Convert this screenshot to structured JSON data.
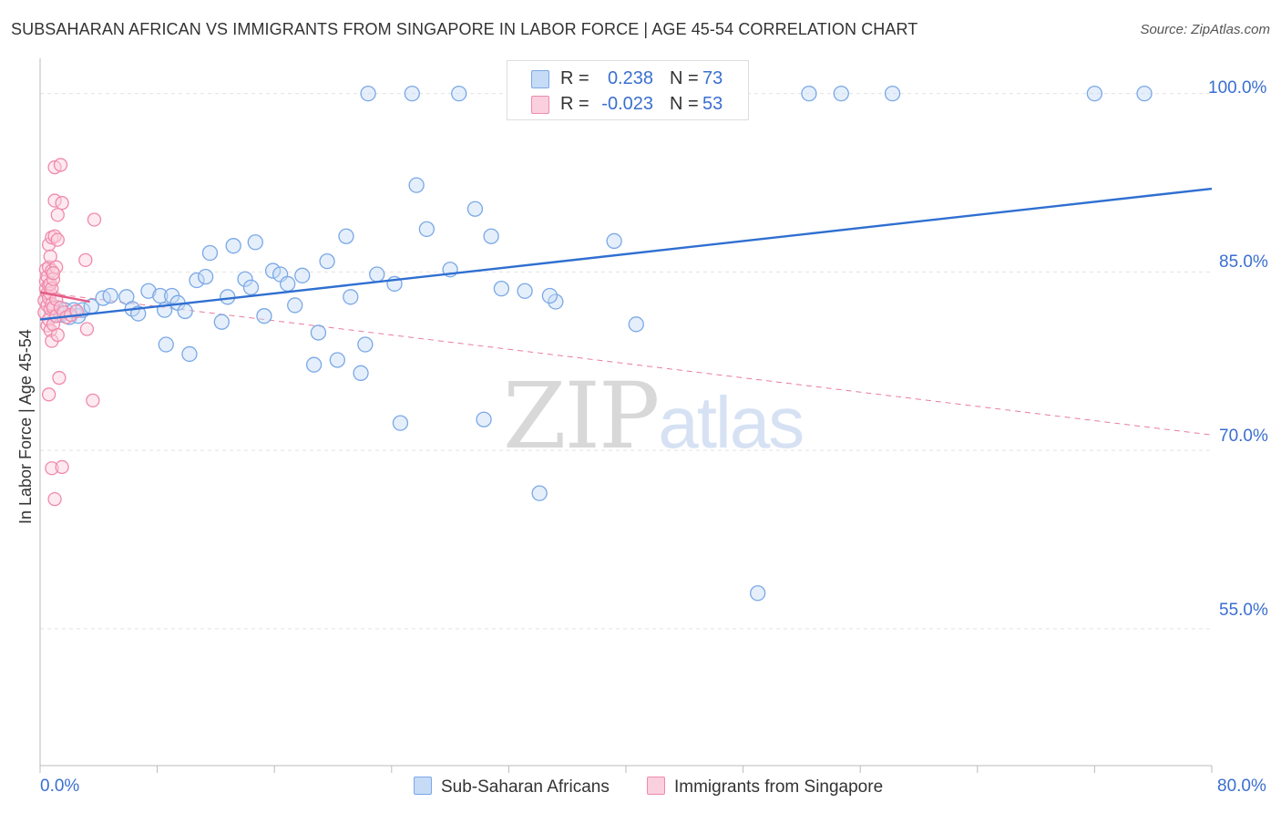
{
  "title": "SUBSAHARAN AFRICAN VS IMMIGRANTS FROM SINGAPORE IN LABOR FORCE | AGE 45-54 CORRELATION CHART",
  "source": "Source: ZipAtlas.com",
  "watermark": {
    "zip": "ZIP",
    "atlas": "atlas"
  },
  "legend": {
    "rows": [
      {
        "r_label": "R =",
        "r_value": "0.238",
        "n_label": "N =",
        "n_value": "73"
      },
      {
        "r_label": "R =",
        "r_value": "-0.023",
        "n_label": "N =",
        "n_value": "53"
      }
    ]
  },
  "colors": {
    "blue": "#7aa8e6",
    "blue_fill": "#c6dbf6",
    "blue_line": "#2f6fd1",
    "pink": "#f08aab",
    "pink_fill": "#fbd0de",
    "pink_line": "#e55b86",
    "axis_text": "#3a6fd0",
    "grid": "#e3e3e3"
  },
  "chart_data": {
    "type": "scatter",
    "title": "SUBSAHARAN AFRICAN VS IMMIGRANTS FROM SINGAPORE IN LABOR FORCE | AGE 45-54 CORRELATION CHART",
    "xlabel": "",
    "ylabel": "In Labor Force | Age 45-54",
    "xlim": [
      0,
      80
    ],
    "ylim": [
      43.5,
      102.5
    ],
    "x_tick_labels": [
      "0.0%",
      "80.0%"
    ],
    "y_ticks": [
      55,
      70,
      85,
      100
    ],
    "y_tick_labels": [
      "55.0%",
      "70.0%",
      "85.0%",
      "100.0%"
    ],
    "grid": true,
    "legend_position": "bottom",
    "series": [
      {
        "name": "Sub-Saharan Africans",
        "R": 0.238,
        "N": 73,
        "trend": {
          "x": [
            0,
            80
          ],
          "y": [
            81.0,
            92.0
          ]
        },
        "points": [
          [
            0.8,
            81.4
          ],
          [
            1.1,
            82.0
          ],
          [
            1.4,
            81.4
          ],
          [
            1.7,
            81.8
          ],
          [
            2.0,
            81.2
          ],
          [
            2.3,
            81.8
          ],
          [
            2.6,
            81.3
          ],
          [
            2.9,
            81.8
          ],
          [
            3.5,
            82.1
          ],
          [
            4.3,
            82.8
          ],
          [
            4.8,
            83.0
          ],
          [
            5.9,
            82.9
          ],
          [
            6.3,
            81.9
          ],
          [
            6.7,
            81.5
          ],
          [
            7.4,
            83.4
          ],
          [
            8.2,
            83.0
          ],
          [
            8.5,
            81.8
          ],
          [
            8.6,
            78.9
          ],
          [
            9.0,
            83.0
          ],
          [
            9.4,
            82.4
          ],
          [
            9.9,
            81.7
          ],
          [
            10.2,
            78.1
          ],
          [
            10.7,
            84.3
          ],
          [
            11.3,
            84.6
          ],
          [
            11.6,
            86.6
          ],
          [
            12.4,
            80.8
          ],
          [
            12.8,
            82.9
          ],
          [
            13.2,
            87.2
          ],
          [
            14.0,
            84.4
          ],
          [
            14.4,
            83.7
          ],
          [
            14.7,
            87.5
          ],
          [
            15.3,
            81.3
          ],
          [
            15.9,
            85.1
          ],
          [
            16.4,
            84.8
          ],
          [
            16.9,
            84.0
          ],
          [
            17.4,
            82.2
          ],
          [
            17.9,
            84.7
          ],
          [
            18.7,
            77.2
          ],
          [
            19.0,
            79.9
          ],
          [
            19.6,
            85.9
          ],
          [
            20.3,
            77.6
          ],
          [
            20.9,
            88.0
          ],
          [
            21.2,
            82.9
          ],
          [
            21.9,
            76.5
          ],
          [
            22.2,
            78.9
          ],
          [
            22.4,
            100.0
          ],
          [
            23.0,
            84.8
          ],
          [
            24.2,
            84.0
          ],
          [
            24.6,
            72.3
          ],
          [
            25.4,
            100.0
          ],
          [
            25.7,
            92.3
          ],
          [
            26.4,
            88.6
          ],
          [
            28.0,
            85.2
          ],
          [
            28.6,
            100.0
          ],
          [
            29.7,
            90.3
          ],
          [
            30.3,
            72.6
          ],
          [
            30.8,
            88.0
          ],
          [
            31.5,
            83.6
          ],
          [
            33.1,
            83.4
          ],
          [
            34.1,
            66.4
          ],
          [
            35.2,
            82.5
          ],
          [
            37.4,
            100.0
          ],
          [
            39.2,
            87.6
          ],
          [
            40.7,
            80.6
          ],
          [
            41.3,
            100.0
          ],
          [
            43.1,
            100.0
          ],
          [
            49.0,
            58.0
          ],
          [
            52.5,
            100.0
          ],
          [
            54.7,
            100.0
          ],
          [
            58.2,
            100.0
          ],
          [
            72.0,
            100.0
          ],
          [
            75.4,
            100.0
          ],
          [
            34.8,
            83.0
          ]
        ]
      },
      {
        "name": "Immigrants from Singapore",
        "R": -0.023,
        "N": 53,
        "trend": {
          "x": [
            0,
            3.4
          ],
          "y": [
            83.3,
            82.5
          ]
        },
        "trend_extended": {
          "x": [
            0,
            80
          ],
          "y": [
            83.3,
            71.3
          ]
        },
        "points": [
          [
            0.3,
            81.6
          ],
          [
            0.3,
            82.6
          ],
          [
            0.4,
            83.6
          ],
          [
            0.4,
            84.2
          ],
          [
            0.4,
            85.2
          ],
          [
            0.5,
            80.5
          ],
          [
            0.5,
            82.2
          ],
          [
            0.5,
            83.2
          ],
          [
            0.5,
            84.6
          ],
          [
            0.6,
            81.0
          ],
          [
            0.6,
            82.8
          ],
          [
            0.6,
            83.9
          ],
          [
            0.6,
            85.4
          ],
          [
            0.6,
            87.3
          ],
          [
            0.6,
            74.7
          ],
          [
            0.7,
            80.1
          ],
          [
            0.7,
            81.9
          ],
          [
            0.7,
            83.2
          ],
          [
            0.7,
            84.0
          ],
          [
            0.7,
            86.3
          ],
          [
            0.8,
            79.2
          ],
          [
            0.8,
            82.3
          ],
          [
            0.8,
            83.6
          ],
          [
            0.8,
            85.1
          ],
          [
            0.8,
            87.9
          ],
          [
            0.8,
            68.5
          ],
          [
            0.9,
            80.6
          ],
          [
            0.9,
            82.0
          ],
          [
            0.9,
            84.4
          ],
          [
            1.0,
            65.9
          ],
          [
            1.0,
            88.0
          ],
          [
            1.0,
            91.0
          ],
          [
            1.0,
            93.8
          ],
          [
            1.1,
            81.3
          ],
          [
            1.1,
            82.7
          ],
          [
            1.1,
            85.4
          ],
          [
            1.2,
            79.7
          ],
          [
            1.2,
            87.7
          ],
          [
            1.2,
            89.8
          ],
          [
            1.3,
            76.1
          ],
          [
            1.4,
            94.0
          ],
          [
            1.4,
            82.0
          ],
          [
            1.5,
            68.6
          ],
          [
            1.5,
            90.8
          ],
          [
            1.6,
            81.6
          ],
          [
            1.8,
            81.2
          ],
          [
            2.1,
            81.4
          ],
          [
            2.5,
            81.7
          ],
          [
            3.1,
            86.0
          ],
          [
            3.2,
            80.2
          ],
          [
            3.6,
            74.2
          ],
          [
            3.7,
            89.4
          ],
          [
            0.9,
            84.9
          ]
        ]
      }
    ]
  },
  "bottom_legend": [
    "Sub-Saharan Africans",
    "Immigrants from Singapore"
  ]
}
